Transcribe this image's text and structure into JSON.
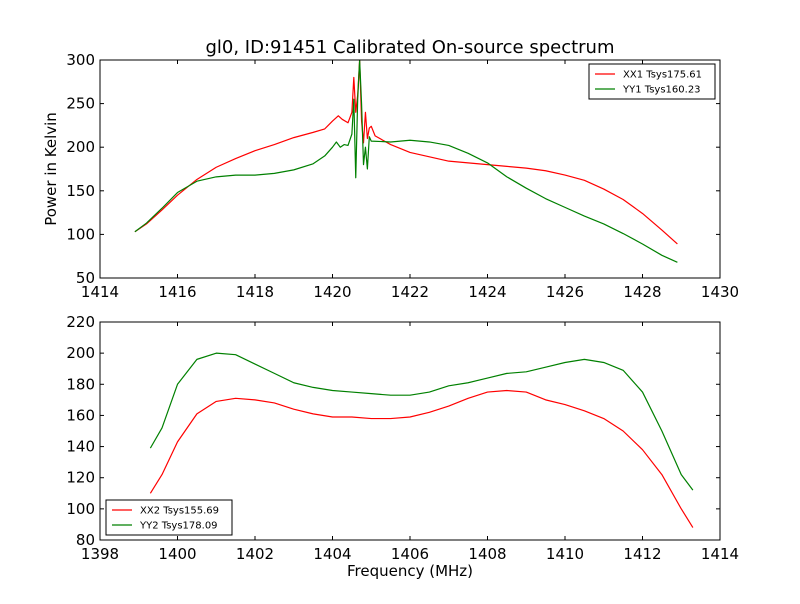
{
  "colors": {
    "xx": "#ff0000",
    "yy": "#008000",
    "axes": "#000000",
    "background": "#ffffff"
  },
  "chart_data": [
    {
      "type": "line",
      "title": "gl0, ID:91451 Calibrated On-source spectrum",
      "xlabel": "",
      "ylabel": "Power in Kelvin",
      "xlim": [
        1414,
        1430
      ],
      "ylim": [
        50,
        300
      ],
      "xticks": [
        1414,
        1416,
        1418,
        1420,
        1422,
        1424,
        1426,
        1428,
        1430
      ],
      "yticks": [
        50,
        100,
        150,
        200,
        250,
        300
      ],
      "legend_position": "top-right",
      "grid": false,
      "series": [
        {
          "name": "XX1 Tsys175.61",
          "color": "#ff0000",
          "points": [
            [
              1414.9,
              103
            ],
            [
              1415.2,
              112
            ],
            [
              1415.6,
              128
            ],
            [
              1416.0,
              145
            ],
            [
              1416.5,
              163
            ],
            [
              1417.0,
              177
            ],
            [
              1417.5,
              187
            ],
            [
              1418.0,
              196
            ],
            [
              1418.5,
              203
            ],
            [
              1419.0,
              211
            ],
            [
              1419.5,
              217
            ],
            [
              1419.8,
              221
            ],
            [
              1420.0,
              230
            ],
            [
              1420.15,
              236
            ],
            [
              1420.25,
              232
            ],
            [
              1420.4,
              228
            ],
            [
              1420.5,
              240
            ],
            [
              1420.55,
              280
            ],
            [
              1420.6,
              240
            ],
            [
              1420.65,
              260
            ],
            [
              1420.7,
              300
            ],
            [
              1420.75,
              230
            ],
            [
              1420.8,
              205
            ],
            [
              1420.85,
              240
            ],
            [
              1420.9,
              210
            ],
            [
              1420.95,
              222
            ],
            [
              1421.0,
              224
            ],
            [
              1421.1,
              213
            ],
            [
              1421.3,
              208
            ],
            [
              1421.5,
              203
            ],
            [
              1422.0,
              194
            ],
            [
              1422.5,
              189
            ],
            [
              1423.0,
              184
            ],
            [
              1423.5,
              182
            ],
            [
              1424.0,
              180
            ],
            [
              1424.5,
              178
            ],
            [
              1425.0,
              176
            ],
            [
              1425.5,
              173
            ],
            [
              1426.0,
              168
            ],
            [
              1426.5,
              162
            ],
            [
              1427.0,
              152
            ],
            [
              1427.5,
              140
            ],
            [
              1428.0,
              124
            ],
            [
              1428.5,
              105
            ],
            [
              1428.9,
              89
            ]
          ]
        },
        {
          "name": "YY1 Tsys160.23",
          "color": "#008000",
          "points": [
            [
              1414.9,
              103
            ],
            [
              1415.2,
              113
            ],
            [
              1415.6,
              130
            ],
            [
              1416.0,
              148
            ],
            [
              1416.5,
              161
            ],
            [
              1417.0,
              166
            ],
            [
              1417.5,
              168
            ],
            [
              1418.0,
              168
            ],
            [
              1418.5,
              170
            ],
            [
              1419.0,
              174
            ],
            [
              1419.5,
              181
            ],
            [
              1419.8,
              190
            ],
            [
              1420.0,
              200
            ],
            [
              1420.1,
              206
            ],
            [
              1420.2,
              200
            ],
            [
              1420.3,
              203
            ],
            [
              1420.4,
              202
            ],
            [
              1420.5,
              215
            ],
            [
              1420.55,
              255
            ],
            [
              1420.6,
              165
            ],
            [
              1420.65,
              255
            ],
            [
              1420.7,
              300
            ],
            [
              1420.75,
              250
            ],
            [
              1420.8,
              180
            ],
            [
              1420.85,
              200
            ],
            [
              1420.9,
              175
            ],
            [
              1420.95,
              212
            ],
            [
              1421.0,
              207
            ],
            [
              1421.5,
              206
            ],
            [
              1422.0,
              208
            ],
            [
              1422.5,
              206
            ],
            [
              1423.0,
              202
            ],
            [
              1423.5,
              193
            ],
            [
              1424.0,
              182
            ],
            [
              1424.5,
              166
            ],
            [
              1425.0,
              153
            ],
            [
              1425.5,
              141
            ],
            [
              1426.0,
              131
            ],
            [
              1426.5,
              121
            ],
            [
              1427.0,
              112
            ],
            [
              1427.5,
              101
            ],
            [
              1428.0,
              89
            ],
            [
              1428.5,
              76
            ],
            [
              1428.9,
              68
            ]
          ]
        }
      ]
    },
    {
      "type": "line",
      "title": "",
      "xlabel": "Frequency (MHz)",
      "ylabel": "",
      "xlim": [
        1398,
        1414
      ],
      "ylim": [
        80,
        220
      ],
      "xticks": [
        1398,
        1400,
        1402,
        1404,
        1406,
        1408,
        1410,
        1412,
        1414
      ],
      "yticks": [
        80,
        100,
        120,
        140,
        160,
        180,
        200,
        220
      ],
      "legend_position": "bottom-left",
      "grid": false,
      "series": [
        {
          "name": "XX2 Tsys155.69",
          "color": "#ff0000",
          "points": [
            [
              1399.3,
              110
            ],
            [
              1399.6,
              122
            ],
            [
              1400.0,
              143
            ],
            [
              1400.5,
              161
            ],
            [
              1401.0,
              169
            ],
            [
              1401.5,
              171
            ],
            [
              1402.0,
              170
            ],
            [
              1402.5,
              168
            ],
            [
              1403.0,
              164
            ],
            [
              1403.5,
              161
            ],
            [
              1404.0,
              159
            ],
            [
              1404.5,
              159
            ],
            [
              1405.0,
              158
            ],
            [
              1405.5,
              158
            ],
            [
              1406.0,
              159
            ],
            [
              1406.5,
              162
            ],
            [
              1407.0,
              166
            ],
            [
              1407.5,
              171
            ],
            [
              1408.0,
              175
            ],
            [
              1408.5,
              176
            ],
            [
              1409.0,
              175
            ],
            [
              1409.5,
              170
            ],
            [
              1410.0,
              167
            ],
            [
              1410.5,
              163
            ],
            [
              1411.0,
              158
            ],
            [
              1411.5,
              150
            ],
            [
              1412.0,
              138
            ],
            [
              1412.5,
              122
            ],
            [
              1413.0,
              100
            ],
            [
              1413.3,
              88
            ]
          ]
        },
        {
          "name": "YY2 Tsys178.09",
          "color": "#008000",
          "points": [
            [
              1399.3,
              139
            ],
            [
              1399.6,
              152
            ],
            [
              1400.0,
              180
            ],
            [
              1400.5,
              196
            ],
            [
              1401.0,
              200
            ],
            [
              1401.5,
              199
            ],
            [
              1402.0,
              193
            ],
            [
              1402.5,
              187
            ],
            [
              1403.0,
              181
            ],
            [
              1403.5,
              178
            ],
            [
              1404.0,
              176
            ],
            [
              1404.5,
              175
            ],
            [
              1405.0,
              174
            ],
            [
              1405.5,
              173
            ],
            [
              1406.0,
              173
            ],
            [
              1406.5,
              175
            ],
            [
              1407.0,
              179
            ],
            [
              1407.5,
              181
            ],
            [
              1408.0,
              184
            ],
            [
              1408.5,
              187
            ],
            [
              1409.0,
              188
            ],
            [
              1409.5,
              191
            ],
            [
              1410.0,
              194
            ],
            [
              1410.5,
              196
            ],
            [
              1411.0,
              194
            ],
            [
              1411.5,
              189
            ],
            [
              1412.0,
              175
            ],
            [
              1412.5,
              150
            ],
            [
              1413.0,
              122
            ],
            [
              1413.3,
              112
            ]
          ]
        }
      ]
    }
  ]
}
